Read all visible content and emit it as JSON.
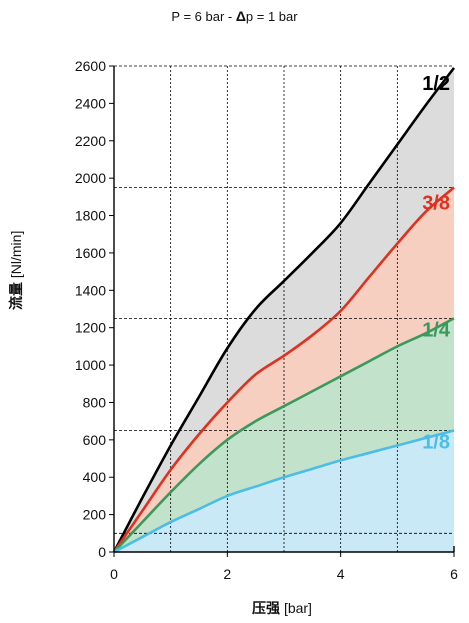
{
  "header": {
    "title_prefix": "P = 6 bar - ",
    "delta_symbol": "Δ",
    "title_suffix": "p = 1 bar"
  },
  "chart_data": {
    "type": "area",
    "title": "P = 6 bar - Δp = 1 bar",
    "xlabel_cn": "压强",
    "xlabel_unit": "[bar]",
    "ylabel_cn": "流量",
    "ylabel_unit": "[Nl/min]",
    "xlim": [
      0,
      6
    ],
    "ylim": [
      0,
      2600
    ],
    "x_ticks": [
      0,
      2,
      4,
      6
    ],
    "y_ticks": [
      0,
      200,
      400,
      600,
      800,
      1000,
      1200,
      1400,
      1600,
      1800,
      2000,
      2200,
      2400,
      2600
    ],
    "x_grid": [
      1,
      2,
      3,
      4,
      5
    ],
    "y_grid_dashed": [
      100,
      650,
      1250,
      1950,
      2600
    ],
    "grid": true,
    "x": [
      0,
      0.5,
      1,
      1.5,
      2,
      2.5,
      3,
      3.5,
      4,
      4.5,
      5,
      5.5,
      6
    ],
    "series": [
      {
        "name": "1/2",
        "color": "#000000",
        "fill": "#dcdcdc",
        "values": [
          0,
          290,
          570,
          830,
          1090,
          1300,
          1450,
          1600,
          1760,
          1970,
          2180,
          2390,
          2590
        ]
      },
      {
        "name": "3/8",
        "color": "#e0301e",
        "fill": "#f7cfc0",
        "values": [
          0,
          220,
          440,
          630,
          800,
          950,
          1050,
          1160,
          1290,
          1470,
          1650,
          1820,
          1950
        ]
      },
      {
        "name": "1/4",
        "color": "#3a9a5c",
        "fill": "#c3e2cc",
        "values": [
          0,
          160,
          320,
          470,
          600,
          700,
          780,
          860,
          940,
          1020,
          1100,
          1170,
          1250
        ]
      },
      {
        "name": "1/8",
        "color": "#4bbde6",
        "fill": "#c9e9f7",
        "values": [
          0,
          80,
          160,
          230,
          300,
          350,
          400,
          445,
          490,
          530,
          570,
          610,
          650
        ]
      }
    ]
  }
}
